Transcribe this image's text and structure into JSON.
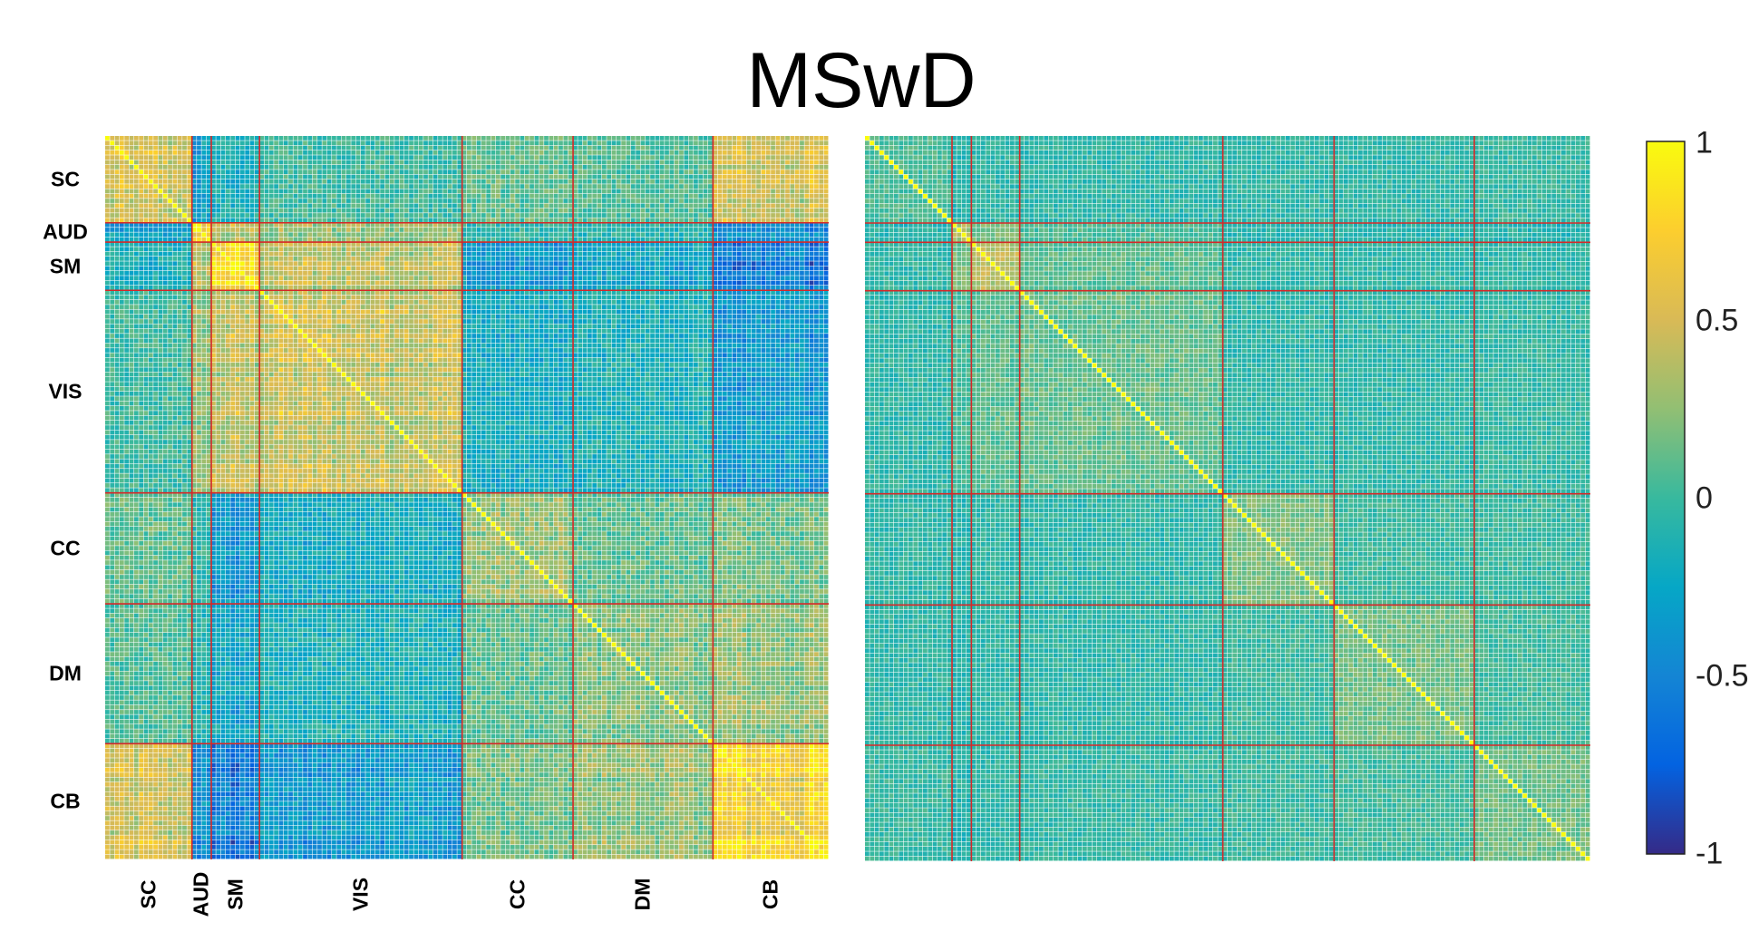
{
  "chart_data": {
    "type": "heatmap",
    "title": "MSwD",
    "size": 150,
    "network_labels": [
      "SC",
      "AUD",
      "SM",
      "VIS",
      "CC",
      "DM",
      "CB"
    ],
    "network_sizes": [
      18,
      4,
      10,
      42,
      23,
      29,
      24
    ],
    "panels": [
      {
        "name": "left",
        "row_labels": [
          "SC",
          "AUD",
          "SM",
          "VIS",
          "CC",
          "DM",
          "CB"
        ],
        "col_labels": [
          "SC",
          "AUD",
          "SM",
          "VIS",
          "CC",
          "DM",
          "CB"
        ],
        "diagonal_value": 1,
        "block_means": [
          [
            0.45,
            -0.3,
            -0.15,
            0.0,
            0.1,
            0.05,
            0.45
          ],
          [
            -0.3,
            0.7,
            0.35,
            0.25,
            -0.05,
            -0.1,
            -0.4
          ],
          [
            -0.15,
            0.35,
            0.75,
            0.4,
            -0.35,
            -0.25,
            -0.55
          ],
          [
            0.0,
            0.25,
            0.4,
            0.45,
            -0.2,
            -0.15,
            -0.35
          ],
          [
            0.1,
            -0.05,
            -0.35,
            -0.2,
            0.25,
            0.1,
            0.15
          ],
          [
            0.05,
            -0.1,
            -0.25,
            -0.15,
            0.1,
            0.2,
            0.25
          ],
          [
            0.45,
            -0.4,
            -0.55,
            -0.35,
            0.15,
            0.25,
            0.7
          ]
        ]
      },
      {
        "name": "right",
        "diagonal_value": 1,
        "block_means": [
          [
            0.05,
            -0.1,
            -0.05,
            -0.05,
            -0.05,
            -0.05,
            -0.02
          ],
          [
            -0.1,
            0.4,
            0.2,
            0.05,
            -0.08,
            -0.08,
            -0.1
          ],
          [
            -0.05,
            0.2,
            0.45,
            0.1,
            -0.05,
            -0.05,
            -0.05
          ],
          [
            -0.05,
            0.05,
            0.1,
            0.12,
            -0.05,
            -0.05,
            -0.03
          ],
          [
            -0.05,
            -0.08,
            -0.05,
            -0.05,
            0.18,
            0.0,
            0.0
          ],
          [
            -0.05,
            -0.08,
            -0.05,
            -0.05,
            0.0,
            0.15,
            0.02
          ],
          [
            -0.02,
            -0.1,
            -0.05,
            -0.03,
            0.0,
            0.02,
            0.15
          ]
        ]
      }
    ],
    "colorbar": {
      "colormap": "parula",
      "range": [
        -1,
        1
      ],
      "ticks": [
        "1",
        "0.5",
        "0",
        "-0.5",
        "-1"
      ]
    },
    "grid_lines_color": "#d62728"
  }
}
